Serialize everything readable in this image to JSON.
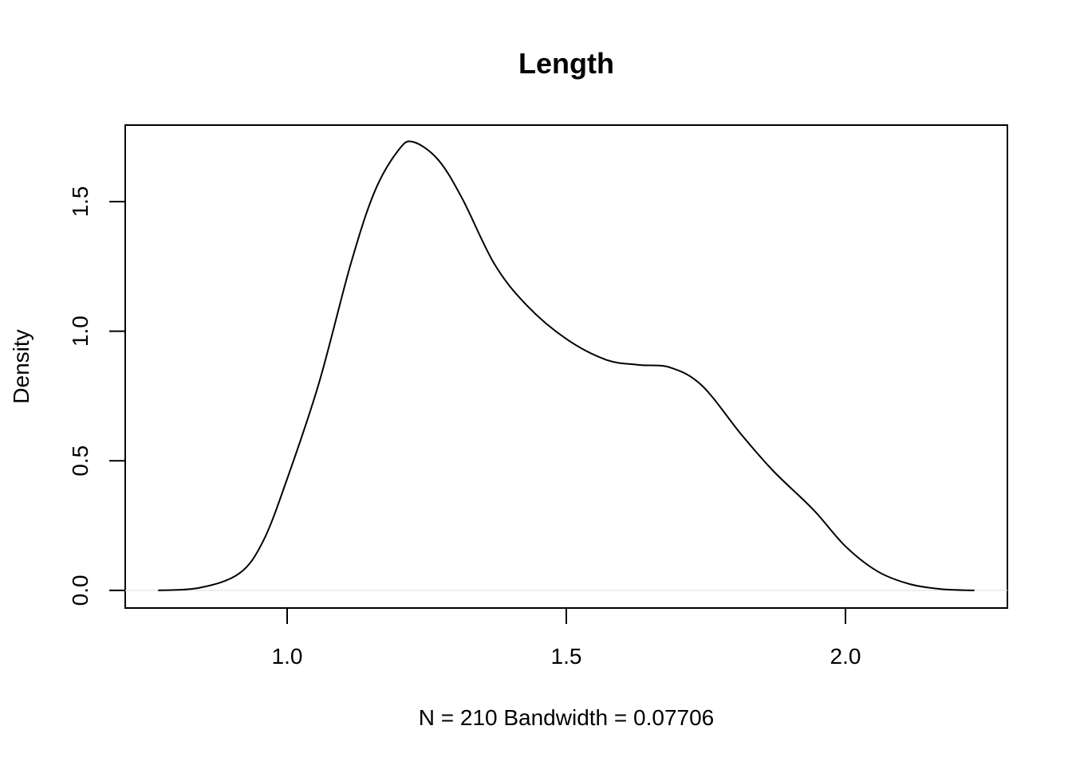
{
  "chart_data": {
    "type": "line",
    "title": "Length",
    "xlabel": "N = 210   Bandwidth = 0.07706",
    "ylabel": "Density",
    "x": [
      0.769,
      0.843,
      0.914,
      0.957,
      1.0,
      1.057,
      1.114,
      1.157,
      1.2,
      1.226,
      1.271,
      1.314,
      1.371,
      1.429,
      1.5,
      1.571,
      1.629,
      1.686,
      1.743,
      1.814,
      1.871,
      1.943,
      2.0,
      2.057,
      2.114,
      2.171,
      2.231
    ],
    "values": [
      0.0,
      0.01,
      0.065,
      0.19,
      0.43,
      0.8,
      1.26,
      1.54,
      1.7,
      1.73,
      1.66,
      1.51,
      1.26,
      1.1,
      0.97,
      0.89,
      0.87,
      0.86,
      0.79,
      0.6,
      0.46,
      0.31,
      0.17,
      0.074,
      0.025,
      0.005,
      0.0
    ],
    "color": "#000000",
    "zero_line": true,
    "xlim": [
      0.71,
      2.29
    ],
    "ylim": [
      -0.068,
      1.795
    ],
    "xticks": [
      {
        "value": 1,
        "label": "1.0"
      },
      1.5,
      {
        "value": 2,
        "label": "2.0"
      }
    ],
    "yticks": [
      {
        "value": 0,
        "label": "0.0"
      },
      0.5,
      {
        "value": 1,
        "label": "1.0"
      },
      1.5
    ]
  }
}
